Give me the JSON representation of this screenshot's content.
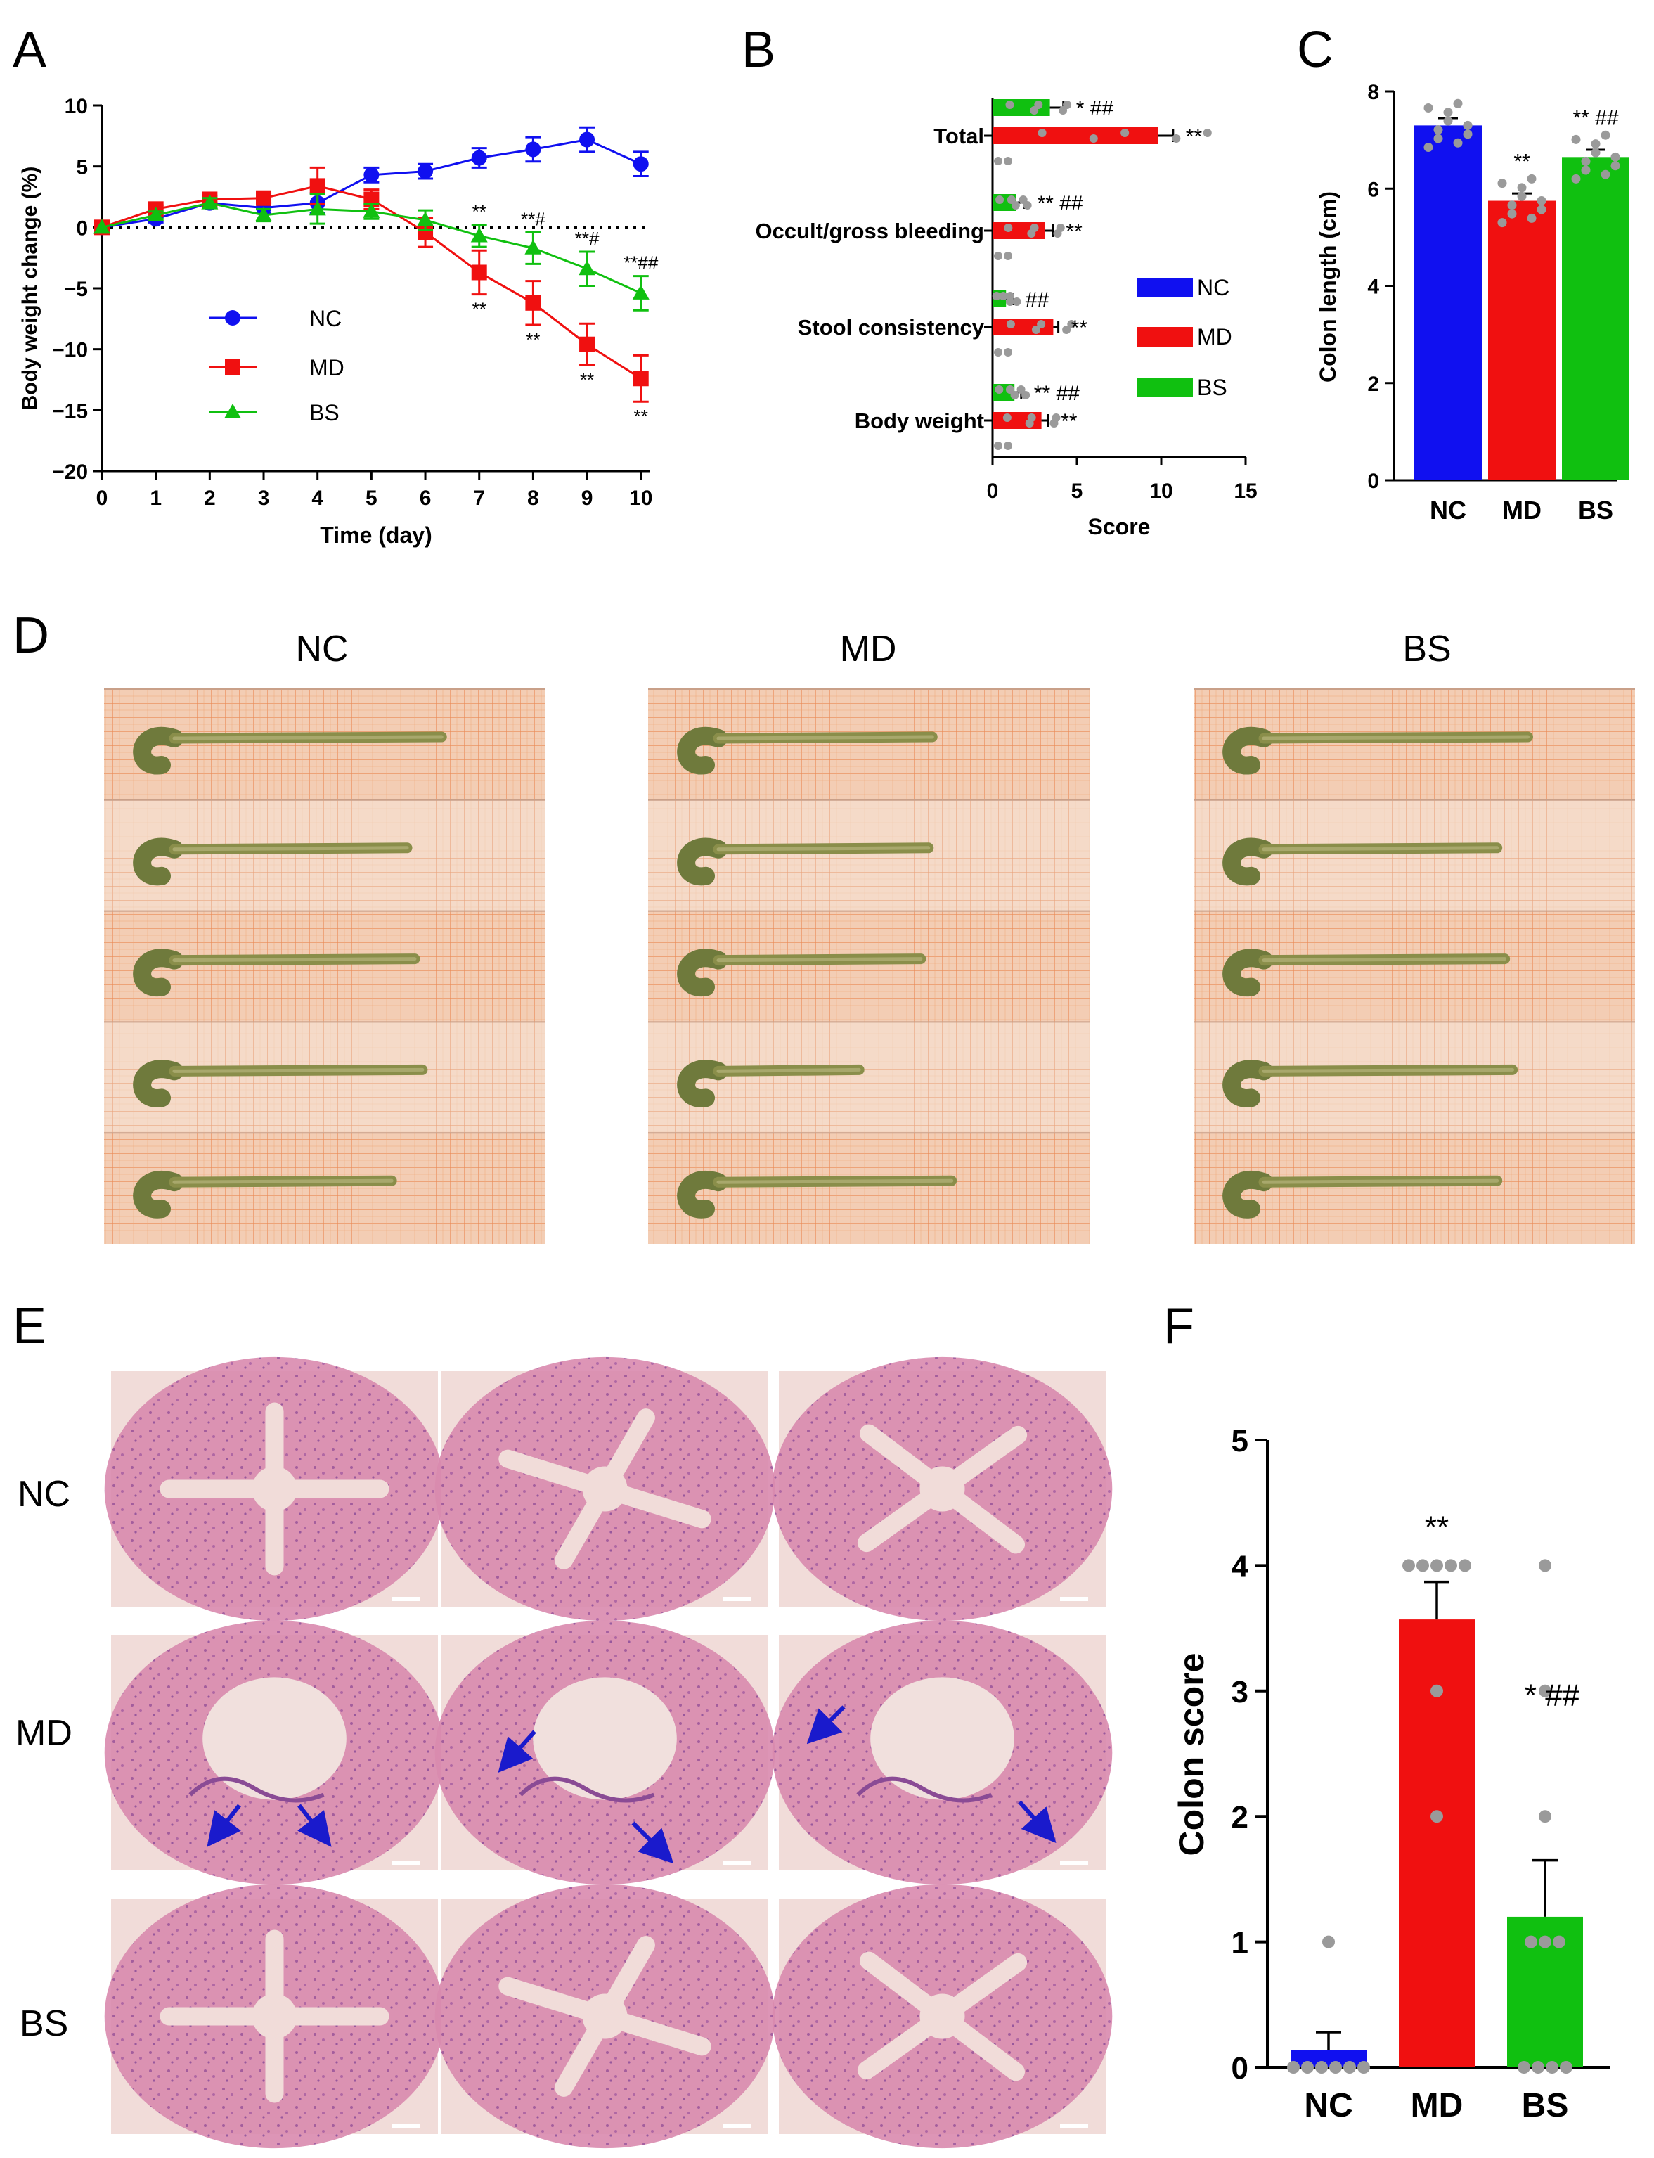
{
  "colors": {
    "NC": "#1010f0",
    "MD": "#f01010",
    "BS": "#10c010",
    "dot": "#9a9a9a",
    "paper": "#f3cdb4",
    "grid": "#ea8a55",
    "he_bg": "#f1dcd9",
    "he_tissue": "#d57fa7",
    "he_crypt": "#8a4b95"
  },
  "panel_letters": {
    "A": "A",
    "B": "B",
    "C": "C",
    "D": "D",
    "E": "E",
    "F": "F"
  },
  "chart_data": [
    {
      "id": "A",
      "type": "line",
      "xlabel": "Time (day)",
      "ylabel": "Body weight change (%)",
      "x": [
        0,
        1,
        2,
        3,
        4,
        5,
        6,
        7,
        8,
        9,
        10
      ],
      "xlim": [
        0,
        10
      ],
      "ylim": [
        -20,
        10
      ],
      "xticks": [
        "0",
        "1",
        "2",
        "3",
        "4",
        "5",
        "6",
        "7",
        "8",
        "9",
        "10"
      ],
      "yticks": [
        "10",
        "5",
        "0",
        "−5",
        "−10",
        "−15",
        "−20"
      ],
      "series": [
        {
          "name": "NC",
          "marker": "circle",
          "values": [
            0,
            0.7,
            2.0,
            1.6,
            2.0,
            4.3,
            4.6,
            5.7,
            6.4,
            7.2,
            5.2
          ],
          "errors": [
            0,
            0.3,
            0.4,
            0.4,
            0.8,
            0.6,
            0.6,
            0.8,
            1.0,
            1.0,
            1.0
          ]
        },
        {
          "name": "MD",
          "marker": "square",
          "values": [
            0,
            1.5,
            2.3,
            2.4,
            3.4,
            2.3,
            -0.4,
            -3.7,
            -6.2,
            -9.6,
            -12.4
          ],
          "errors": [
            0,
            0.3,
            0.3,
            0.4,
            1.5,
            0.8,
            1.2,
            1.8,
            1.8,
            1.7,
            1.9
          ]
        },
        {
          "name": "BS",
          "marker": "triangle",
          "values": [
            0,
            1.0,
            2.0,
            1.0,
            1.5,
            1.3,
            0.6,
            -0.7,
            -1.7,
            -3.4,
            -5.4
          ],
          "errors": [
            0,
            0.3,
            0.4,
            0.5,
            1.2,
            0.6,
            0.8,
            0.9,
            1.3,
            1.4,
            1.4
          ]
        }
      ],
      "legend": [
        "NC",
        "MD",
        "BS"
      ],
      "annotations": [
        {
          "x": 7,
          "text": "**",
          "pos": "BS-above"
        },
        {
          "x": 8,
          "text": "**#",
          "pos": "BS-above"
        },
        {
          "x": 9,
          "text": "**#",
          "pos": "BS-above"
        },
        {
          "x": 10,
          "text": "**##",
          "pos": "BS-above"
        },
        {
          "x": 7,
          "text": "**",
          "pos": "MD-below"
        },
        {
          "x": 8,
          "text": "**",
          "pos": "MD-below"
        },
        {
          "x": 9,
          "text": "**",
          "pos": "MD-below"
        },
        {
          "x": 10,
          "text": "**",
          "pos": "MD-below"
        }
      ]
    },
    {
      "id": "B",
      "type": "bar",
      "orientation": "horizontal",
      "xlabel": "Score",
      "xlim": [
        0,
        15
      ],
      "xticks": [
        "0",
        "5",
        "10",
        "15"
      ],
      "categories": [
        "Total",
        "Occult/gross bleeding",
        "Stool consistency",
        "Body weight"
      ],
      "series": [
        {
          "name": "BS",
          "values": [
            3.4,
            1.4,
            0.8,
            1.3
          ],
          "errors": [
            0.8,
            0.5,
            0.4,
            0.4
          ],
          "sig": [
            "* ##",
            "** ##",
            "##",
            "** ##"
          ]
        },
        {
          "name": "MD",
          "values": [
            9.8,
            3.1,
            3.6,
            2.9
          ],
          "errors": [
            0.9,
            0.5,
            0.3,
            0.4
          ],
          "sig": [
            "**",
            "**",
            "**",
            "**"
          ]
        },
        {
          "name": "NC",
          "values": [
            0,
            0,
            0,
            0
          ],
          "errors": [
            0,
            0,
            0,
            0
          ],
          "sig": [
            "",
            "",
            "",
            ""
          ]
        }
      ],
      "legend": [
        "NC",
        "MD",
        "BS"
      ]
    },
    {
      "id": "C",
      "type": "bar",
      "ylabel": "Colon length (cm)",
      "ylim": [
        0,
        8
      ],
      "yticks": [
        "0",
        "2",
        "4",
        "6",
        "8"
      ],
      "categories": [
        "NC",
        "MD",
        "BS"
      ],
      "values": [
        7.3,
        5.75,
        6.65
      ],
      "errors": [
        0.15,
        0.15,
        0.15
      ],
      "sig": [
        "",
        "**",
        "** ##"
      ]
    },
    {
      "id": "F",
      "type": "bar",
      "ylabel": "Colon score",
      "ylim": [
        0,
        5
      ],
      "yticks": [
        "0",
        "1",
        "2",
        "3",
        "4",
        "5"
      ],
      "categories": [
        "NC",
        "MD",
        "BS"
      ],
      "values": [
        0.14,
        3.57,
        1.2
      ],
      "errors": [
        0.14,
        0.3,
        0.45
      ],
      "points": [
        [
          0,
          0,
          0,
          0,
          0,
          0,
          1
        ],
        [
          4,
          4,
          4,
          4,
          4,
          3,
          2
        ],
        [
          4,
          3,
          2,
          1,
          1,
          1,
          0,
          0,
          0,
          0
        ]
      ],
      "sig": [
        "",
        "**",
        "* ##"
      ]
    }
  ],
  "panel_d": {
    "labels": [
      "NC",
      "MD",
      "BS"
    ]
  },
  "panel_e": {
    "rows": [
      "NC",
      "MD",
      "BS"
    ]
  }
}
